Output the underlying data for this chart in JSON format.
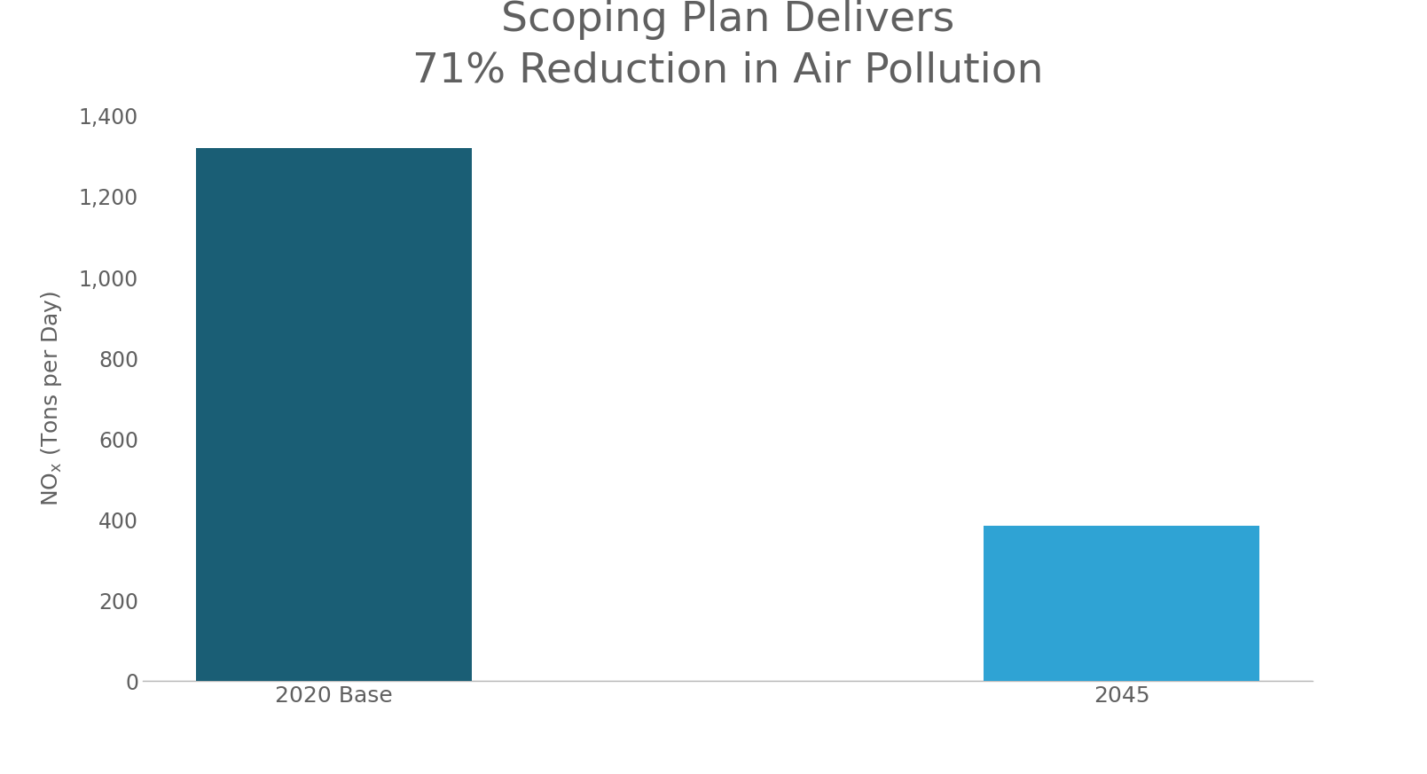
{
  "title_line1": "Scoping Plan Delivers",
  "title_line2": "71% Reduction in Air Pollution",
  "categories": [
    "2020 Base",
    "2045"
  ],
  "values": [
    1320,
    385
  ],
  "bar_colors": [
    "#1a5e75",
    "#2fa3d4"
  ],
  "ylabel_prefix": "NO",
  "ylabel_suffix": " (Tons per Day)",
  "ylim": [
    0,
    1400
  ],
  "yticks": [
    0,
    200,
    400,
    600,
    800,
    1000,
    1200,
    1400
  ],
  "ytick_labels": [
    "0",
    "200",
    "400",
    "600",
    "800",
    "1,000",
    "1,200",
    "1,400"
  ],
  "background_color": "#ffffff",
  "text_color": "#606060",
  "title_fontsize": 34,
  "axis_fontsize": 18,
  "tick_fontsize": 17,
  "bar_width": 0.35
}
